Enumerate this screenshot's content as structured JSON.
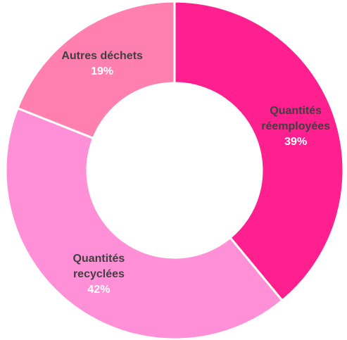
{
  "chart_data": {
    "type": "donut",
    "categories": [
      "Quantités réemployées",
      "Quantités recyclées",
      "Autres déchets"
    ],
    "values": [
      39,
      42,
      19
    ],
    "value_labels": [
      "39%",
      "42%",
      "19%"
    ],
    "colors": [
      "#ff1f8e",
      "#ff8fd6",
      "#ff7fae"
    ]
  }
}
